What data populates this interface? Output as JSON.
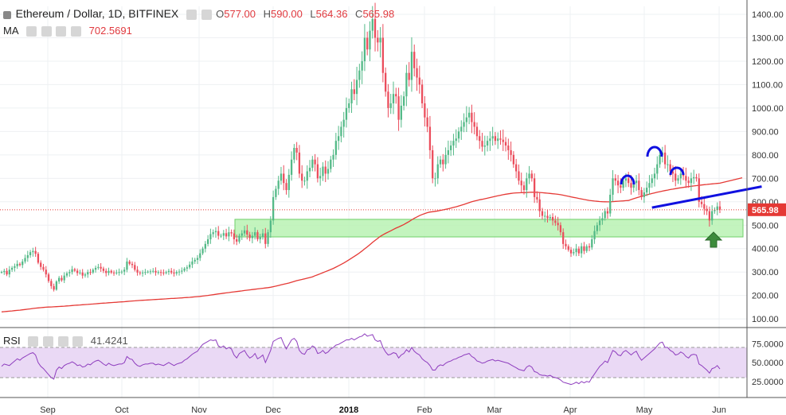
{
  "header": {
    "title": "Ethereum / Dollar, 1D, BITFINEX",
    "ohlc": [
      {
        "label": "O",
        "value": "577.00"
      },
      {
        "label": "H",
        "value": "590.00"
      },
      {
        "label": "L",
        "value": "564.36"
      },
      {
        "label": "C",
        "value": "565.98"
      }
    ],
    "ma_label": "MA",
    "ma_value": "702.5691",
    "rsi_label": "RSI",
    "rsi_value": "41.4241"
  },
  "colors": {
    "up": "#53b987",
    "down": "#eb4d5c",
    "ma_line": "#e53935",
    "rsi_line": "#8e3dbe",
    "rsi_band": "#ead9f5",
    "support_zone": "#b9f2b3",
    "pattern": "#1010e0",
    "arrow": "#3c8b3c",
    "price_tag": "#e53935"
  },
  "chart_data": {
    "type": "candlestick",
    "price_axis": {
      "ticks": [
        "1400.00",
        "1300.00",
        "1200.00",
        "1100.00",
        "1000.00",
        "900.00",
        "800.00",
        "700.00",
        "600.00",
        "500.00",
        "400.00",
        "300.00",
        "200.00",
        "100.00"
      ],
      "ylim": [
        70,
        1400
      ]
    },
    "time_axis": {
      "labels": [
        "Sep",
        "Oct",
        "Nov",
        "Dec",
        "2018",
        "Feb",
        "Mar",
        "Apr",
        "May",
        "Jun"
      ],
      "bold_label": "2018"
    },
    "last_price": "565.98",
    "series_close": [
      300,
      305,
      290,
      310,
      318,
      325,
      335,
      330,
      345,
      360,
      372,
      385,
      390,
      378,
      340,
      322,
      310,
      290,
      262,
      240,
      225,
      260,
      275,
      265,
      285,
      295,
      300,
      312,
      306,
      296,
      298,
      285,
      290,
      300,
      298,
      310,
      318,
      322,
      315,
      305,
      296,
      305,
      298,
      296,
      298,
      300,
      302,
      310,
      345,
      335,
      330,
      310,
      298,
      295,
      298,
      300,
      302,
      303,
      305,
      298,
      300,
      298,
      296,
      300,
      305,
      298,
      294,
      300,
      302,
      306,
      315,
      320,
      332,
      345,
      352,
      360,
      380,
      400,
      420,
      440,
      462,
      470,
      475,
      455,
      455,
      466,
      452,
      470,
      465,
      440,
      430,
      455,
      465,
      478,
      460,
      445,
      455,
      470,
      440,
      450,
      465,
      420,
      470,
      520,
      620,
      655,
      690,
      720,
      680,
      650,
      715,
      780,
      830,
      810,
      720,
      690,
      690,
      730,
      745,
      780,
      760,
      700,
      710,
      750,
      720,
      740,
      780,
      800,
      860,
      880,
      920,
      950,
      1000,
      1020,
      1080,
      1060,
      1120,
      1160,
      1200,
      1300,
      1250,
      1330,
      1380,
      1300,
      1280,
      1300,
      1150,
      1070,
      1000,
      1020,
      1060,
      1050,
      950,
      1010,
      1050,
      1150,
      1120,
      1240,
      1170,
      1130,
      1100,
      1020,
      960,
      920,
      820,
      700,
      700,
      760,
      780,
      760,
      800,
      820,
      840,
      860,
      870,
      900,
      920,
      940,
      960,
      980,
      940,
      920,
      880,
      860,
      835,
      840,
      860,
      870,
      880,
      860,
      870,
      865,
      855,
      840,
      820,
      800,
      760,
      730,
      690,
      670,
      650,
      700,
      720,
      700,
      620,
      610,
      560,
      540,
      540,
      530,
      535,
      520,
      510,
      500,
      470,
      420,
      410,
      395,
      380,
      385,
      400,
      380,
      410,
      390,
      410,
      405,
      440,
      475,
      500,
      520,
      530,
      560,
      550,
      630,
      700,
      690,
      670,
      660,
      690,
      700,
      680,
      660,
      680,
      690,
      650,
      620,
      640,
      660,
      680,
      700,
      720,
      760,
      800,
      810,
      760,
      760,
      730,
      720,
      690,
      700,
      720,
      710,
      690,
      680,
      700,
      705,
      700,
      600,
      590,
      570,
      560,
      520,
      560,
      565,
      580,
      565.98
    ],
    "ma": {
      "name": "MA",
      "start": 130,
      "end": 702.5691
    },
    "rsi": {
      "name": "RSI",
      "upper": 70,
      "lower": 30,
      "ticks": [
        "75.0000",
        "50.0000",
        "25.0000"
      ],
      "last": 41.4241,
      "values": [
        45,
        48,
        47,
        46,
        49,
        52,
        55,
        53,
        56,
        58,
        60,
        62,
        63,
        60,
        50,
        45,
        42,
        38,
        34,
        30,
        28,
        40,
        44,
        42,
        46,
        48,
        49,
        51,
        49,
        46,
        47,
        44,
        45,
        48,
        47,
        50,
        52,
        53,
        51,
        48,
        46,
        49,
        47,
        46,
        47,
        48,
        48,
        50,
        58,
        55,
        54,
        49,
        46,
        45,
        47,
        48,
        48,
        49,
        49,
        47,
        48,
        47,
        46,
        48,
        50,
        48,
        46,
        48,
        49,
        50,
        53,
        55,
        58,
        61,
        63,
        65,
        70,
        74,
        76,
        78,
        80,
        79,
        80,
        72,
        70,
        72,
        68,
        70,
        68,
        60,
        56,
        62,
        64,
        66,
        60,
        56,
        58,
        62,
        55,
        57,
        60,
        50,
        58,
        66,
        78,
        80,
        82,
        83,
        75,
        68,
        74,
        80,
        82,
        78,
        66,
        62,
        61,
        67,
        68,
        72,
        70,
        62,
        63,
        66,
        62,
        64,
        68,
        70,
        73,
        74,
        76,
        78,
        80,
        80,
        82,
        80,
        82,
        84,
        85,
        88,
        85,
        86,
        87,
        80,
        78,
        79,
        70,
        64,
        60,
        61,
        63,
        62,
        56,
        60,
        62,
        67,
        64,
        70,
        65,
        62,
        60,
        55,
        52,
        50,
        46,
        40,
        40,
        45,
        47,
        46,
        49,
        51,
        52,
        54,
        55,
        57,
        58,
        60,
        61,
        62,
        58,
        56,
        52,
        51,
        49,
        50,
        52,
        53,
        54,
        52,
        53,
        52,
        51,
        50,
        49,
        47,
        45,
        43,
        41,
        40,
        39,
        44,
        46,
        44,
        38,
        37,
        34,
        33,
        33,
        32,
        33,
        31,
        30,
        29,
        27,
        24,
        23,
        22,
        21,
        22,
        24,
        22,
        25,
        23,
        25,
        24,
        30,
        35,
        40,
        45,
        48,
        52,
        50,
        58,
        66,
        64,
        60,
        59,
        64,
        66,
        63,
        60,
        63,
        65,
        58,
        53,
        56,
        59,
        62,
        65,
        68,
        72,
        76,
        77,
        70,
        70,
        66,
        64,
        60,
        61,
        64,
        62,
        58,
        56,
        60,
        61,
        60,
        48,
        46,
        43,
        40,
        36,
        42,
        43,
        46,
        41.4241
      ]
    },
    "support_zone": {
      "low": 450,
      "high": 525
    },
    "trendline": {
      "from_index": 249,
      "to_index": 291,
      "from_price": 575,
      "to_price": 665
    }
  }
}
